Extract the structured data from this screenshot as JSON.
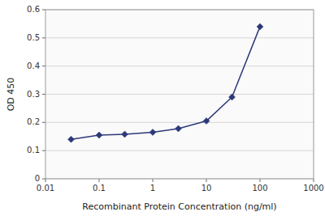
{
  "chart_data": {
    "type": "line",
    "x": [
      0.03,
      0.1,
      0.3,
      1,
      3,
      10,
      30,
      100
    ],
    "values": [
      0.14,
      0.155,
      0.158,
      0.165,
      0.178,
      0.205,
      0.29,
      0.54
    ],
    "color": "#2D3878",
    "marker": "diamond",
    "xlabel": "Recombinant Protein Concentration (ng/ml)",
    "ylabel": "OD 450",
    "log": "x",
    "xlim": [
      0.01,
      1000
    ],
    "ylim": [
      0,
      0.6
    ],
    "xticks": [
      0.01,
      0.1,
      1,
      10,
      100,
      1000
    ],
    "yticks": [
      0,
      0.1,
      0.2,
      0.3,
      0.4,
      0.5,
      0.6
    ],
    "grid": "y"
  }
}
